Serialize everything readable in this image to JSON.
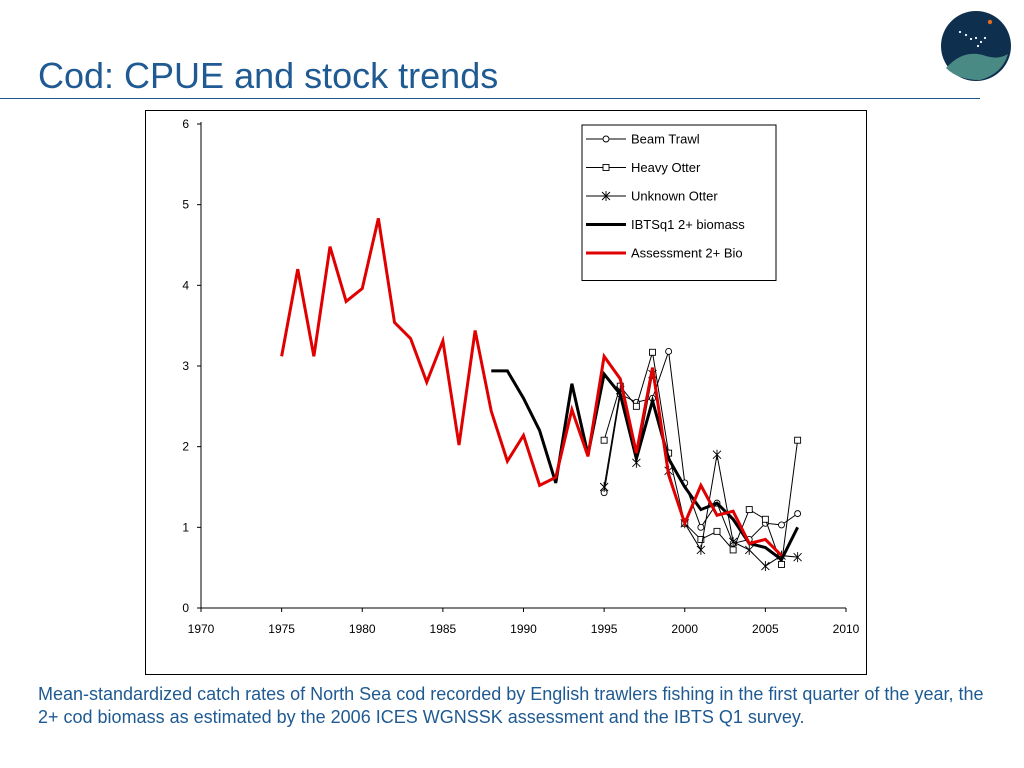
{
  "slide": {
    "title": "Cod: CPUE and stock trends",
    "caption": "Mean-standardized catch rates of North Sea cod recorded by English trawlers fishing in the first quarter of the year, the 2+ cod biomass as estimated by the 2006 ICES WGNSSK assessment and the IBTS Q1 survey.",
    "logo_icon": "constellation-logo-icon",
    "colors": {
      "title": "#1f5a92",
      "logo_dark": "#0f2f4f",
      "logo_teal": "#4a8a84",
      "logo_star": "#e46c1f"
    }
  },
  "chart_data": {
    "type": "line",
    "title": "",
    "xlabel": "",
    "ylabel": "",
    "xlim": [
      1970,
      2010
    ],
    "ylim": [
      0,
      6
    ],
    "xticks": [
      1970,
      1975,
      1980,
      1985,
      1990,
      1995,
      2000,
      2005,
      2010
    ],
    "yticks": [
      0,
      1,
      2,
      3,
      4,
      5,
      6
    ],
    "grid": false,
    "legend_position": "top-right",
    "series": [
      {
        "name": "Beam Trawl",
        "color": "#000000",
        "marker": "circle",
        "line_weight": "thin",
        "x": [
          1995,
          1996,
          1997,
          1998,
          1999,
          2000,
          2001,
          2002,
          2003,
          2004,
          2005,
          2006,
          2007
        ],
        "y": [
          1.43,
          2.65,
          2.55,
          2.6,
          3.18,
          1.55,
          1.0,
          1.3,
          0.8,
          0.85,
          1.05,
          1.03,
          1.17
        ]
      },
      {
        "name": "Heavy Otter",
        "color": "#000000",
        "marker": "square",
        "line_weight": "thin",
        "x": [
          1995,
          1996,
          1997,
          1998,
          1999,
          2000,
          2001,
          2002,
          2003,
          2004,
          2005,
          2006,
          2007
        ],
        "y": [
          2.08,
          2.75,
          2.5,
          3.17,
          1.92,
          1.05,
          0.85,
          0.95,
          0.72,
          1.22,
          1.1,
          0.54,
          2.08
        ]
      },
      {
        "name": "Unknown Otter",
        "color": "#000000",
        "marker": "star",
        "line_weight": "thin",
        "x": [
          1995,
          1996,
          1997,
          1998,
          1999,
          2000,
          2001,
          2002,
          2003,
          2004,
          2005,
          2006,
          2007
        ],
        "y": [
          1.5,
          2.7,
          1.8,
          2.9,
          1.7,
          1.05,
          0.72,
          1.9,
          0.82,
          0.72,
          0.52,
          0.65,
          0.63
        ]
      },
      {
        "name": "IBTSq1 2+ biomass",
        "color": "#000000",
        "marker": "none",
        "line_weight": "thick",
        "x": [
          1988,
          1989,
          1990,
          1991,
          1992,
          1993,
          1994,
          1995,
          1996,
          1997,
          1998,
          1999,
          2000,
          2001,
          2002,
          2003,
          2004,
          2005,
          2006,
          2007
        ],
        "y": [
          2.94,
          2.94,
          2.6,
          2.2,
          1.55,
          2.78,
          1.9,
          2.9,
          2.65,
          1.85,
          2.57,
          1.85,
          1.5,
          1.22,
          1.3,
          1.1,
          0.8,
          0.75,
          0.6,
          1.0
        ]
      },
      {
        "name": "Assessment 2+ Bio",
        "color": "#e00000",
        "marker": "none",
        "line_weight": "thick",
        "x": [
          1975,
          1976,
          1977,
          1978,
          1979,
          1980,
          1981,
          1982,
          1983,
          1984,
          1985,
          1986,
          1987,
          1988,
          1989,
          1990,
          1991,
          1992,
          1993,
          1994,
          1995,
          1996,
          1997,
          1998,
          1999,
          2000,
          2001,
          2002,
          2003,
          2004,
          2005,
          2006
        ],
        "y": [
          3.12,
          4.2,
          3.12,
          4.48,
          3.8,
          3.96,
          4.83,
          3.54,
          3.34,
          2.8,
          3.31,
          2.02,
          3.44,
          2.44,
          1.82,
          2.14,
          1.52,
          1.62,
          2.46,
          1.88,
          3.12,
          2.84,
          1.92,
          2.98,
          1.65,
          1.05,
          1.52,
          1.15,
          1.2,
          0.8,
          0.85,
          0.65
        ]
      }
    ]
  }
}
